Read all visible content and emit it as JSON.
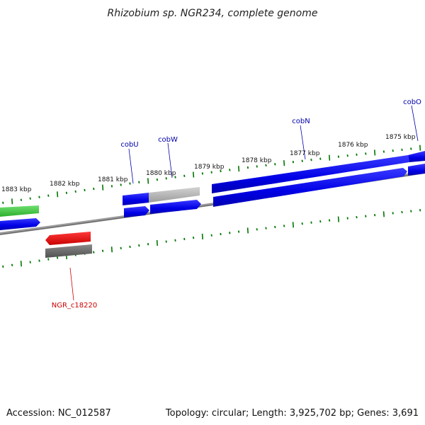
{
  "title": "Rhizobium sp. NGR234, complete genome",
  "footer": {
    "accession": "Accession: NC_012587",
    "summary": "Topology: circular; Length: 3,925,702 bp; Genes: 3,691"
  },
  "colors": {
    "cds_blue": "#0000ee",
    "cds_green": "#33cc33",
    "cds_red": "#ee0000",
    "cds_gray": "#b0b0b0",
    "cds_darkgray": "#666666",
    "backbone": "#777777",
    "tick": "#007700",
    "label_blue": "#0000aa",
    "label_red": "#cc0000"
  },
  "scale_labels": [
    {
      "label": "1883 kbp",
      "kbp": 1883
    },
    {
      "label": "1882 kbp",
      "kbp": 1882
    },
    {
      "label": "1881 kbp",
      "kbp": 1881
    },
    {
      "label": "1880 kbp",
      "kbp": 1880
    },
    {
      "label": "1879 kbp",
      "kbp": 1879
    },
    {
      "label": "1878 kbp",
      "kbp": 1878
    },
    {
      "label": "1877 kbp",
      "kbp": 1877
    },
    {
      "label": "1876 kbp",
      "kbp": 1876
    },
    {
      "label": "1875 kbp",
      "kbp": 1875
    }
  ],
  "gene_labels": [
    {
      "name": "cobU",
      "color": "label_blue"
    },
    {
      "name": "cobW",
      "color": "label_blue"
    },
    {
      "name": "cobN",
      "color": "label_blue"
    },
    {
      "name": "cobO",
      "color": "label_blue"
    },
    {
      "name": "NGR_c18220",
      "color": "label_red"
    }
  ]
}
